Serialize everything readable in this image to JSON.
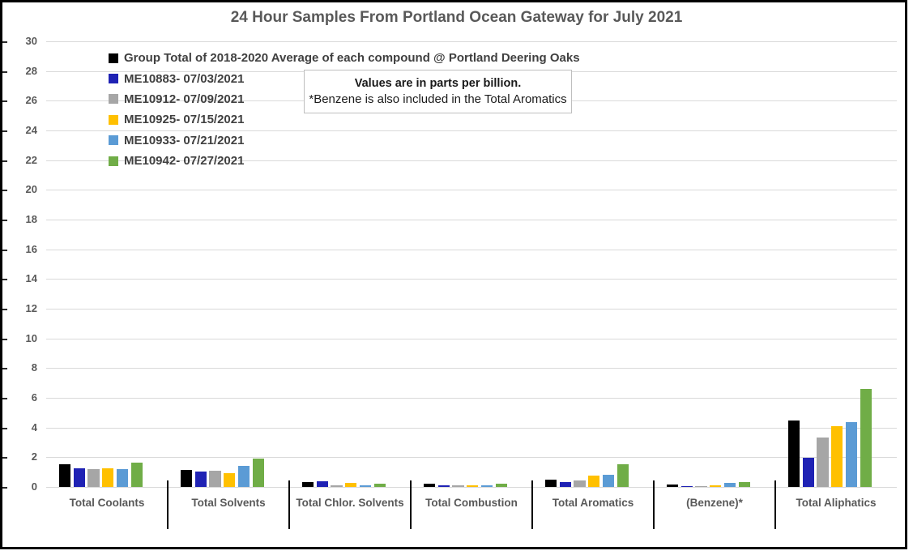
{
  "title": "24 Hour Samples From Portland Ocean Gateway for July 2021",
  "note": {
    "line1": "Values are in parts per billion.",
    "line2": "*Benzene is also included in the Total Aromatics"
  },
  "chart_data": {
    "type": "bar",
    "title": "24 Hour Samples From Portland Ocean Gateway for July 2021",
    "unit": "parts per billion",
    "categories": [
      "Total Coolants",
      "Total Solvents",
      "Total Chlor. Solvents",
      "Total Combustion",
      "Total Aromatics",
      "(Benzene)*",
      "Total Aliphatics"
    ],
    "series": [
      {
        "name": "Group Total of 2018-2020 Average of each compound @ Portland Deering Oaks",
        "color": "#000000",
        "values": [
          1.5,
          1.15,
          0.3,
          0.2,
          0.5,
          0.15,
          4.45
        ]
      },
      {
        "name": "ME10883- 07/03/2021",
        "color": "#1f22b4",
        "values": [
          1.25,
          1.05,
          0.4,
          0.1,
          0.35,
          0.07,
          1.95
        ]
      },
      {
        "name": "ME10912- 07/09/2021",
        "color": "#a6a6a6",
        "values": [
          1.2,
          1.1,
          0.1,
          0.1,
          0.45,
          0.05,
          3.3
        ]
      },
      {
        "name": "ME10925- 07/15/2021",
        "color": "#ffc000",
        "values": [
          1.25,
          0.95,
          0.25,
          0.1,
          0.75,
          0.1,
          4.1
        ]
      },
      {
        "name": "ME10933- 07/21/2021",
        "color": "#5b9bd5",
        "values": [
          1.2,
          1.4,
          0.1,
          0.1,
          0.8,
          0.27,
          4.35
        ]
      },
      {
        "name": "ME10942- 07/27/2021",
        "color": "#70ad47",
        "values": [
          1.65,
          1.9,
          0.2,
          0.2,
          1.55,
          0.35,
          6.6
        ]
      }
    ],
    "ylim": [
      0,
      30
    ],
    "ytick_step": 2,
    "grid": true,
    "legend_position": "top-left-inside",
    "colors": {
      "gridline": "#d9d9d9",
      "axis_text": "#595959",
      "legend_text": "#404040",
      "title_text": "#595959",
      "separator": "#000000",
      "note_border": "#bfbfbf"
    }
  }
}
